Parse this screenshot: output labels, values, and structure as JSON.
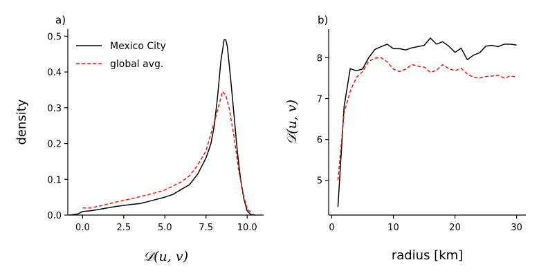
{
  "chart_data": [
    {
      "type": "line",
      "panel_label": "a)",
      "xlabel": "𝒟(u, v)",
      "ylabel": "density",
      "xlim": [
        -0.9,
        11.0
      ],
      "ylim": [
        0.0,
        0.52
      ],
      "xticks": [
        0.0,
        2.5,
        5.0,
        7.5,
        10.0
      ],
      "xtick_labels": [
        "0.0",
        "2.5",
        "5.0",
        "7.5",
        "10.0"
      ],
      "yticks": [
        0.0,
        0.1,
        0.2,
        0.3,
        0.4,
        0.5
      ],
      "ytick_labels": [
        "0.0",
        "0.1",
        "0.2",
        "0.3",
        "0.4",
        "0.5"
      ],
      "grid": false,
      "legend": "top-left",
      "series": [
        {
          "name": "Mexico City",
          "color": "#000000",
          "style": "solid",
          "x": [
            -0.8,
            -0.3,
            0.0,
            0.5,
            1.0,
            2.0,
            3.0,
            3.5,
            4.0,
            4.5,
            5.0,
            5.5,
            6.0,
            6.5,
            7.0,
            7.5,
            7.8,
            8.0,
            8.2,
            8.4,
            8.6,
            8.7,
            8.8,
            9.0,
            9.2,
            9.4,
            9.6,
            9.8,
            10.0,
            10.2,
            10.5
          ],
          "y": [
            0.0,
            0.003,
            0.01,
            0.012,
            0.016,
            0.024,
            0.03,
            0.032,
            0.038,
            0.044,
            0.05,
            0.058,
            0.072,
            0.085,
            0.115,
            0.16,
            0.2,
            0.25,
            0.33,
            0.43,
            0.49,
            0.49,
            0.47,
            0.38,
            0.28,
            0.18,
            0.1,
            0.045,
            0.012,
            0.002,
            0.0
          ]
        },
        {
          "name": "global avg.",
          "color": "#e8180c",
          "style": "dashed",
          "x": [
            0.0,
            0.5,
            1.0,
            2.0,
            3.0,
            4.0,
            5.0,
            6.0,
            6.5,
            7.0,
            7.5,
            8.0,
            8.3,
            8.5,
            8.7,
            8.9,
            9.2,
            9.5,
            9.8,
            10.0,
            10.3
          ],
          "y": [
            0.02,
            0.02,
            0.025,
            0.036,
            0.046,
            0.057,
            0.07,
            0.093,
            0.11,
            0.14,
            0.18,
            0.26,
            0.31,
            0.345,
            0.335,
            0.3,
            0.22,
            0.12,
            0.05,
            0.018,
            0.003
          ]
        }
      ]
    },
    {
      "type": "line",
      "panel_label": "b)",
      "xlabel": "radius [km]",
      "ylabel": "𝒟(u, v)",
      "xlim": [
        -0.5,
        31.5
      ],
      "ylim": [
        4.15,
        8.7
      ],
      "xticks": [
        0,
        10,
        20,
        30
      ],
      "xtick_labels": [
        "0",
        "10",
        "20",
        "30"
      ],
      "yticks": [
        5,
        6,
        7,
        8
      ],
      "ytick_labels": [
        "5",
        "6",
        "7",
        "8"
      ],
      "grid": false,
      "series": [
        {
          "name": "Mexico City",
          "color": "#000000",
          "style": "solid",
          "x": [
            1,
            2,
            3,
            4,
            5,
            6,
            7,
            8,
            9,
            10,
            11,
            12,
            13,
            14,
            15,
            16,
            17,
            18,
            19,
            20,
            21,
            22,
            23,
            24,
            25,
            26,
            27,
            28,
            29,
            30
          ],
          "y": [
            4.35,
            6.8,
            7.73,
            7.68,
            7.72,
            8.0,
            8.2,
            8.27,
            8.33,
            8.22,
            8.22,
            8.19,
            8.24,
            8.27,
            8.3,
            8.48,
            8.33,
            8.39,
            8.28,
            8.13,
            8.23,
            7.95,
            8.06,
            8.12,
            8.28,
            8.3,
            8.27,
            8.33,
            8.33,
            8.31
          ]
        },
        {
          "name": "global avg.",
          "color": "#e8180c",
          "style": "dashed",
          "x": [
            1,
            2,
            3,
            4,
            5,
            6,
            7,
            8,
            9,
            10,
            11,
            12,
            13,
            14,
            15,
            16,
            17,
            18,
            19,
            20,
            21,
            22,
            23,
            24,
            25,
            26,
            27,
            28,
            29,
            30
          ],
          "y": [
            5.0,
            6.65,
            7.18,
            7.52,
            7.66,
            7.91,
            7.99,
            8.0,
            7.9,
            7.72,
            7.66,
            7.72,
            7.83,
            7.79,
            7.77,
            7.64,
            7.69,
            7.83,
            7.73,
            7.68,
            7.74,
            7.6,
            7.52,
            7.5,
            7.54,
            7.55,
            7.57,
            7.5,
            7.55,
            7.53
          ]
        }
      ]
    }
  ]
}
